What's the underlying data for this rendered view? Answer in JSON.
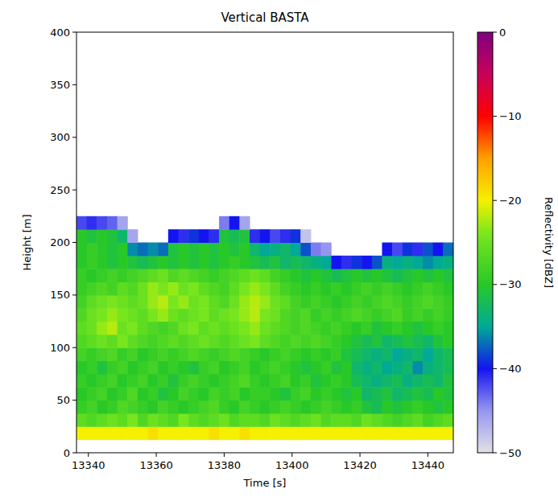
{
  "chart_data": {
    "type": "heatmap",
    "title": "Vertical BASTA",
    "x_label": "Time [s]",
    "y_label": "Height [m]",
    "x": [
      13338,
      13341,
      13344,
      13347,
      13350,
      13353,
      13356,
      13359,
      13362,
      13365,
      13368,
      13371,
      13374,
      13377,
      13380,
      13383,
      13386,
      13389,
      13392,
      13395,
      13398,
      13401,
      13404,
      13407,
      13410,
      13413,
      13416,
      13419,
      13422,
      13425,
      13428,
      13431,
      13434,
      13437,
      13440,
      13443,
      13446
    ],
    "y": [
      18.75,
      31.25,
      43.75,
      56.25,
      68.75,
      81.25,
      93.75,
      106.25,
      118.75,
      131.25,
      143.75,
      156.25,
      168.75,
      181.25,
      193.75,
      206.25,
      218.75
    ],
    "values": [
      [
        -20,
        -20,
        -20,
        -20,
        -20,
        -20,
        -20,
        -19,
        -20,
        -20,
        -20,
        -20,
        -20,
        -19,
        -20,
        -20,
        -19,
        -20,
        -20,
        -20,
        -20,
        -20,
        -20,
        -20,
        -20,
        -20,
        -20,
        -20,
        -20,
        -20,
        -20,
        -20,
        -20,
        -20,
        -20,
        -20,
        -20
      ],
      [
        -26,
        -27,
        -26,
        -25,
        -26,
        -24,
        -27,
        -25,
        -26,
        -27,
        -24,
        -26,
        -27,
        -26,
        -25,
        -27,
        -26,
        -26,
        -27,
        -25,
        -26,
        -27,
        -26,
        -25,
        -27,
        -26,
        -26,
        -27,
        -25,
        -26,
        -27,
        -28,
        -27,
        -26,
        -28,
        -27,
        -26
      ],
      [
        -29,
        -28,
        -30,
        -29,
        -27,
        -28,
        -29,
        -30,
        -28,
        -29,
        -30,
        -29,
        -28,
        -27,
        -29,
        -30,
        -28,
        -29,
        -30,
        -29,
        -28,
        -29,
        -30,
        -29,
        -28,
        -29,
        -30,
        -29,
        -31,
        -32,
        -30,
        -31,
        -30,
        -29,
        -30,
        -31,
        -30
      ],
      [
        -30,
        -29,
        -28,
        -30,
        -29,
        -27,
        -30,
        -29,
        -31,
        -30,
        -28,
        -29,
        -30,
        -28,
        -29,
        -28,
        -30,
        -29,
        -29,
        -30,
        -31,
        -29,
        -28,
        -30,
        -29,
        -30,
        -31,
        -30,
        -33,
        -32,
        -31,
        -33,
        -32,
        -31,
        -32,
        -30,
        -31
      ],
      [
        -29,
        -30,
        -29,
        -28,
        -30,
        -29,
        -28,
        -30,
        -29,
        -31,
        -29,
        -28,
        -29,
        -30,
        -29,
        -28,
        -27,
        -29,
        -30,
        -29,
        -28,
        -30,
        -29,
        -31,
        -30,
        -29,
        -30,
        -32,
        -33,
        -34,
        -33,
        -32,
        -34,
        -33,
        -32,
        -33,
        -31
      ],
      [
        -30,
        -29,
        -31,
        -29,
        -28,
        -30,
        -29,
        -28,
        -30,
        -29,
        -30,
        -31,
        -29,
        -28,
        -30,
        -29,
        -28,
        -30,
        -29,
        -28,
        -29,
        -30,
        -31,
        -30,
        -29,
        -31,
        -30,
        -33,
        -34,
        -33,
        -35,
        -34,
        -33,
        -36,
        -34,
        -33,
        -32
      ],
      [
        -28,
        -29,
        -28,
        -27,
        -29,
        -28,
        -30,
        -29,
        -28,
        -29,
        -28,
        -27,
        -28,
        -29,
        -28,
        -27,
        -28,
        -29,
        -30,
        -29,
        -28,
        -29,
        -30,
        -29,
        -30,
        -29,
        -31,
        -32,
        -33,
        -34,
        -33,
        -35,
        -34,
        -33,
        -35,
        -33,
        -32
      ],
      [
        -27,
        -26,
        -25,
        -26,
        -24,
        -26,
        -27,
        -28,
        -27,
        -26,
        -27,
        -26,
        -25,
        -26,
        -27,
        -26,
        -25,
        -24,
        -26,
        -27,
        -28,
        -27,
        -28,
        -27,
        -28,
        -29,
        -30,
        -31,
        -32,
        -31,
        -33,
        -32,
        -31,
        -32,
        -33,
        -31,
        -30
      ],
      [
        -26,
        -25,
        -23,
        -22,
        -25,
        -24,
        -26,
        -27,
        -28,
        -27,
        -25,
        -24,
        -26,
        -25,
        -26,
        -25,
        -24,
        -23,
        -25,
        -26,
        -27,
        -28,
        -27,
        -28,
        -29,
        -28,
        -29,
        -30,
        -29,
        -31,
        -30,
        -29,
        -30,
        -31,
        -30,
        -29,
        -30
      ],
      [
        -27,
        -25,
        -24,
        -23,
        -24,
        -25,
        -26,
        -24,
        -23,
        -25,
        -26,
        -25,
        -24,
        -26,
        -25,
        -24,
        -23,
        -22,
        -24,
        -25,
        -27,
        -28,
        -27,
        -29,
        -28,
        -29,
        -28,
        -27,
        -28,
        -29,
        -28,
        -27,
        -29,
        -28,
        -29,
        -28,
        -29
      ],
      [
        -28,
        -26,
        -25,
        -24,
        -25,
        -26,
        -25,
        -23,
        -22,
        -24,
        -23,
        -25,
        -24,
        -26,
        -27,
        -25,
        -23,
        -22,
        -23,
        -25,
        -26,
        -28,
        -29,
        -28,
        -29,
        -30,
        -29,
        -28,
        -29,
        -28,
        -27,
        -28,
        -29,
        -28,
        -27,
        -28,
        -29
      ],
      [
        -29,
        -28,
        -27,
        -28,
        -26,
        -27,
        -25,
        -23,
        -24,
        -23,
        -25,
        -24,
        -26,
        -27,
        -28,
        -26,
        -24,
        -23,
        -24,
        -26,
        -28,
        -29,
        -30,
        -29,
        -30,
        -29,
        -30,
        -29,
        -28,
        -29,
        -28,
        -29,
        -30,
        -29,
        -28,
        -29,
        -30
      ],
      [
        -29,
        -30,
        -29,
        -28,
        -29,
        -28,
        -27,
        -26,
        -25,
        -27,
        -26,
        -27,
        -28,
        -29,
        -28,
        -27,
        -26,
        -25,
        -26,
        -28,
        -29,
        -30,
        -31,
        -30,
        -31,
        -32,
        -31,
        -30,
        -31,
        -30,
        -31,
        -32,
        -31,
        -30,
        -31,
        -30,
        -31
      ],
      [
        -30,
        -29,
        -30,
        -31,
        -30,
        -31,
        -32,
        -31,
        -30,
        -31,
        -30,
        -31,
        -30,
        -31,
        -30,
        -29,
        -30,
        -31,
        -32,
        -31,
        -33,
        -32,
        -33,
        -34,
        -35,
        -40,
        -41,
        -39,
        -40,
        -38,
        -34,
        -35,
        -34,
        -35,
        -36,
        -35,
        -34
      ],
      [
        -30,
        -29,
        -30,
        -31,
        -30,
        -36,
        -37,
        -36,
        -37,
        -31,
        -30,
        -31,
        -30,
        -31,
        -30,
        -31,
        -30,
        -33,
        -35,
        -34,
        -33,
        -35,
        -38,
        -44,
        -45,
        null,
        null,
        null,
        null,
        null,
        -40,
        -42,
        -39,
        -41,
        -38,
        -40,
        -37
      ],
      [
        -30,
        -31,
        -30,
        -31,
        -33,
        -46,
        null,
        null,
        null,
        -40,
        -41,
        -39,
        -40,
        -41,
        -31,
        -32,
        -31,
        -41,
        -40,
        -42,
        -41,
        -39,
        -48,
        null,
        null,
        null,
        null,
        null,
        null,
        null,
        null,
        null,
        null,
        null,
        null,
        null,
        null
      ],
      [
        -42,
        -41,
        -42,
        -43,
        -46,
        null,
        null,
        null,
        null,
        null,
        null,
        null,
        null,
        null,
        -44,
        -40,
        -46,
        null,
        null,
        null,
        null,
        null,
        null,
        null,
        null,
        null,
        null,
        null,
        null,
        null,
        null,
        null,
        null,
        null,
        null,
        null,
        null
      ]
    ],
    "xlim": [
      13336.5,
      13447.5
    ],
    "ylim": [
      0,
      400
    ],
    "xticks": [
      13340,
      13360,
      13380,
      13400,
      13420,
      13440
    ],
    "yticks": [
      0,
      50,
      100,
      150,
      200,
      250,
      300,
      350,
      400
    ],
    "colorbar": {
      "label": "Reflectivity [dBZ]",
      "range": [
        -50,
        0
      ],
      "ticks": [
        0,
        {
          "value": -10,
          "label": "−10"
        },
        {
          "value": -20,
          "label": "−20"
        },
        {
          "value": -30,
          "label": "−30"
        },
        {
          "value": -40,
          "label": "−40"
        },
        {
          "value": -50,
          "label": "−50"
        }
      ]
    }
  }
}
